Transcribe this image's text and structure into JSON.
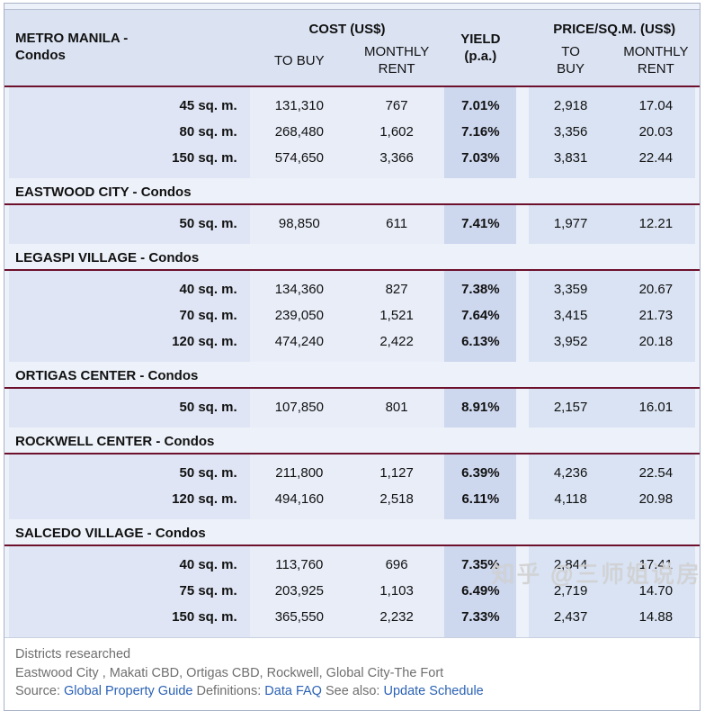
{
  "colors": {
    "accent_rule_red": "#6d102c",
    "header_bg": "#dbe3f3",
    "yield_col_bg": "#cdd7ee",
    "base_bg": "#edf1f9",
    "link_blue": "#2b62b5"
  },
  "table": {
    "header": {
      "title": "METRO MANILA -\nCondos",
      "cost_group": "COST (US$)",
      "cost_to_buy": "TO BUY",
      "cost_monthly_rent": "MONTHLY\nRENT",
      "yield": "YIELD\n(p.a.)",
      "price_group": "PRICE/SQ.M. (US$)",
      "price_to_buy": "TO\nBUY",
      "price_monthly_rent": "MONTHLY\nRENT"
    },
    "sections": [
      {
        "title": "",
        "rows": [
          [
            "45 sq. m.",
            "131,310",
            "767",
            "7.01%",
            "2,918",
            "17.04"
          ],
          [
            "80 sq. m.",
            "268,480",
            "1,602",
            "7.16%",
            "3,356",
            "20.03"
          ],
          [
            "150 sq. m.",
            "574,650",
            "3,366",
            "7.03%",
            "3,831",
            "22.44"
          ]
        ]
      },
      {
        "title": "EASTWOOD CITY - Condos",
        "rows": [
          [
            "50 sq. m.",
            "98,850",
            "611",
            "7.41%",
            "1,977",
            "12.21"
          ]
        ]
      },
      {
        "title": "LEGASPI VILLAGE - Condos",
        "rows": [
          [
            "40 sq. m.",
            "134,360",
            "827",
            "7.38%",
            "3,359",
            "20.67"
          ],
          [
            "70 sq. m.",
            "239,050",
            "1,521",
            "7.64%",
            "3,415",
            "21.73"
          ],
          [
            "120 sq. m.",
            "474,240",
            "2,422",
            "6.13%",
            "3,952",
            "20.18"
          ]
        ]
      },
      {
        "title": "ORTIGAS CENTER - Condos",
        "rows": [
          [
            "50 sq. m.",
            "107,850",
            "801",
            "8.91%",
            "2,157",
            "16.01"
          ]
        ]
      },
      {
        "title": "ROCKWELL CENTER - Condos",
        "rows": [
          [
            "50 sq. m.",
            "211,800",
            "1,127",
            "6.39%",
            "4,236",
            "22.54"
          ],
          [
            "120 sq. m.",
            "494,160",
            "2,518",
            "6.11%",
            "4,118",
            "20.98"
          ]
        ]
      },
      {
        "title": "SALCEDO VILLAGE - Condos",
        "rows": [
          [
            "40 sq. m.",
            "113,760",
            "696",
            "7.35%",
            "2,844",
            "17.41"
          ],
          [
            "75 sq. m.",
            "203,925",
            "1,103",
            "6.49%",
            "2,719",
            "14.70"
          ],
          [
            "150 sq. m.",
            "365,550",
            "2,232",
            "7.33%",
            "2,437",
            "14.88"
          ]
        ]
      }
    ]
  },
  "footer": {
    "districts_label": "Districts researched",
    "districts": "Eastwood City , Makati CBD, Ortigas CBD, Rockwell, Global City-The Fort",
    "source_label": "Source:",
    "source_link": "Global Property Guide",
    "definitions_label": "Definitions:",
    "definitions_link": "Data FAQ",
    "seealso_label": "See also:",
    "seealso_link": "Update Schedule"
  },
  "watermark": "知乎 @三师姐说房"
}
